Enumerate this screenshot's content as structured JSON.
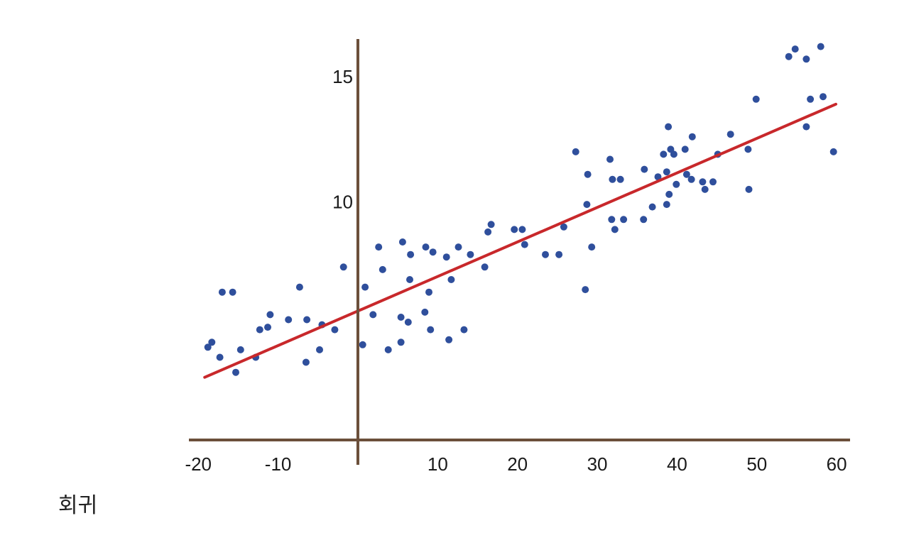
{
  "caption": "회귀",
  "colors": {
    "axis": "#6b4f3a",
    "points": "#2f4f9c",
    "regression_line": "#c8282b",
    "text": "#1a1a1a"
  },
  "chart_data": {
    "type": "scatter",
    "title": "",
    "xlabel": "",
    "ylabel": "",
    "xlim": [
      -21,
      61.5
    ],
    "ylim": [
      0.5,
      16.5
    ],
    "x_ticks": [
      -20,
      -10,
      10,
      20,
      30,
      40,
      50,
      60
    ],
    "x_tick_labels": [
      "-20",
      "-10",
      "10",
      "20",
      "30",
      "40",
      "50",
      "60"
    ],
    "y_ticks": [
      10,
      15
    ],
    "y_tick_labels": [
      "10",
      "15"
    ],
    "grid": false,
    "axes_cross_at": [
      0,
      0.5
    ],
    "series": [
      {
        "points": [
          [
            -18.8,
            4.2
          ],
          [
            -18.3,
            4.4
          ],
          [
            -17.3,
            3.8
          ],
          [
            -17.0,
            6.4
          ],
          [
            -15.7,
            6.4
          ],
          [
            -15.3,
            3.2
          ],
          [
            -14.7,
            4.1
          ],
          [
            -12.8,
            3.8
          ],
          [
            -12.3,
            4.9
          ],
          [
            -11.3,
            5.0
          ],
          [
            -11.0,
            5.5
          ],
          [
            -8.7,
            5.3
          ],
          [
            -7.3,
            6.6
          ],
          [
            -6.5,
            3.6
          ],
          [
            -6.4,
            5.3
          ],
          [
            -4.8,
            4.1
          ],
          [
            -4.5,
            5.1
          ],
          [
            -2.9,
            4.9
          ],
          [
            -1.8,
            7.4
          ],
          [
            0.6,
            4.3
          ],
          [
            0.9,
            6.6
          ],
          [
            1.9,
            5.5
          ],
          [
            2.6,
            8.2
          ],
          [
            3.1,
            7.3
          ],
          [
            3.8,
            4.1
          ],
          [
            5.4,
            4.4
          ],
          [
            5.4,
            5.4
          ],
          [
            5.6,
            8.4
          ],
          [
            6.3,
            5.2
          ],
          [
            6.5,
            6.9
          ],
          [
            6.6,
            7.9
          ],
          [
            8.4,
            5.6
          ],
          [
            8.5,
            8.2
          ],
          [
            8.9,
            6.4
          ],
          [
            9.1,
            4.9
          ],
          [
            9.4,
            8.0
          ],
          [
            11.1,
            7.8
          ],
          [
            11.4,
            4.5
          ],
          [
            11.7,
            6.9
          ],
          [
            12.6,
            8.2
          ],
          [
            13.3,
            4.9
          ],
          [
            14.1,
            7.9
          ],
          [
            15.9,
            7.4
          ],
          [
            16.3,
            8.8
          ],
          [
            16.7,
            9.1
          ],
          [
            19.6,
            8.9
          ],
          [
            20.6,
            8.9
          ],
          [
            20.9,
            8.3
          ],
          [
            23.5,
            7.9
          ],
          [
            25.2,
            7.9
          ],
          [
            25.8,
            9.0
          ],
          [
            27.3,
            12.0
          ],
          [
            28.5,
            6.5
          ],
          [
            28.7,
            9.9
          ],
          [
            28.8,
            11.1
          ],
          [
            29.3,
            8.2
          ],
          [
            31.6,
            11.7
          ],
          [
            31.8,
            9.3
          ],
          [
            31.9,
            10.9
          ],
          [
            32.2,
            8.9
          ],
          [
            32.9,
            10.9
          ],
          [
            33.3,
            9.3
          ],
          [
            35.8,
            9.3
          ],
          [
            35.9,
            11.3
          ],
          [
            36.9,
            9.8
          ],
          [
            37.6,
            11.0
          ],
          [
            38.3,
            11.9
          ],
          [
            38.7,
            11.2
          ],
          [
            38.7,
            9.9
          ],
          [
            38.9,
            13.0
          ],
          [
            39.0,
            10.3
          ],
          [
            39.2,
            12.1
          ],
          [
            39.6,
            11.9
          ],
          [
            39.9,
            10.7
          ],
          [
            41.0,
            12.1
          ],
          [
            41.2,
            11.1
          ],
          [
            41.8,
            10.9
          ],
          [
            41.9,
            12.6
          ],
          [
            43.2,
            10.8
          ],
          [
            43.5,
            10.5
          ],
          [
            44.5,
            10.8
          ],
          [
            45.1,
            11.9
          ],
          [
            46.7,
            12.7
          ],
          [
            48.9,
            12.1
          ],
          [
            49.0,
            10.5
          ],
          [
            49.9,
            14.1
          ],
          [
            54.0,
            15.8
          ],
          [
            54.8,
            16.1
          ],
          [
            56.2,
            13.0
          ],
          [
            56.2,
            15.7
          ],
          [
            56.7,
            14.1
          ],
          [
            58.0,
            16.2
          ],
          [
            58.3,
            14.2
          ],
          [
            59.6,
            12.0
          ]
        ]
      }
    ],
    "regression_line": {
      "x": [
        -19.2,
        59.9
      ],
      "y": [
        3.0,
        13.9
      ]
    }
  }
}
